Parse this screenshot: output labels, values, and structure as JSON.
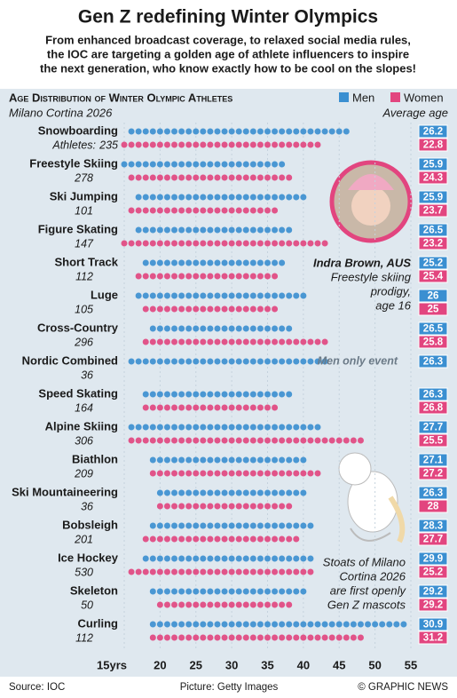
{
  "chart_data": {
    "type": "dot-range",
    "title": "Gen Z redefining Winter Olympics",
    "subtitle": [
      "From enhanced broadcast coverage, to relaxed social media rules,",
      "the IOC are targeting a golden age of athlete influencers to inspire",
      "the next generation, who know exactly how to be cool on the slopes!"
    ],
    "chart_title": "Age Distribution of Winter Olympic Athletes",
    "chart_subtitle": "Milano Cortina 2026",
    "average_label": "Average age",
    "athletes_label": "Athletes:",
    "categories": [
      "Snowboarding",
      "Freestyle Skiing",
      "Ski Jumping",
      "Figure Skating",
      "Short Track",
      "Luge",
      "Cross-Country",
      "Nordic Combined",
      "Speed Skating",
      "Alpine Skiing",
      "Biathlon",
      "Ski Mountaineering",
      "Bobsleigh",
      "Ice Hockey",
      "Skeleton",
      "Curling"
    ],
    "athletes": [
      235,
      278,
      101,
      147,
      112,
      105,
      296,
      36,
      164,
      306,
      209,
      36,
      201,
      530,
      50,
      112
    ],
    "series": [
      {
        "name": "Men",
        "color": "#3a8fd1",
        "min": [
          16,
          15,
          17,
          17,
          18,
          17,
          19,
          16,
          18,
          16,
          19,
          20,
          19,
          18,
          19,
          19
        ],
        "max": [
          47,
          37,
          40,
          38,
          38,
          40,
          38,
          43,
          39,
          42,
          40,
          40,
          41,
          41,
          40,
          55
        ],
        "average": [
          26.2,
          25.9,
          25.9,
          26.5,
          25.2,
          26.0,
          26.5,
          26.3,
          26.3,
          27.7,
          27.1,
          26.3,
          28.3,
          29.9,
          29.2,
          30.9
        ]
      },
      {
        "name": "Women",
        "color": "#e2457f",
        "min": [
          15,
          16,
          16,
          15,
          17,
          18,
          18,
          null,
          18,
          16,
          19,
          20,
          18,
          16,
          20,
          19
        ],
        "max": [
          42,
          38,
          36,
          43,
          36,
          36,
          44,
          null,
          37,
          48,
          42,
          38,
          40,
          41,
          38,
          48
        ],
        "average": [
          22.8,
          24.3,
          23.7,
          23.2,
          25.4,
          25.0,
          25.8,
          null,
          26.8,
          25.5,
          27.2,
          28.0,
          27.7,
          25.2,
          29.2,
          31.2
        ]
      }
    ],
    "xlim": [
      15,
      55
    ],
    "xticks": [
      {
        "value": 15,
        "label": "15yrs"
      },
      20,
      25,
      30,
      35,
      40,
      45,
      50,
      55
    ],
    "grid": true,
    "annotations": {
      "photo_name": "Indra Brown, AUS",
      "photo_caption": [
        "Freestyle skiing",
        "prodigy,",
        "age 16"
      ],
      "men_only": "Men only event",
      "mascot": [
        "Stoats of Milano",
        "Cortina 2026",
        "are first openly",
        "Gen Z mascots"
      ]
    },
    "source": "Source: IOC",
    "picture_credit": "Picture: Getty Images",
    "copyright": "© GRAPHIC NEWS"
  }
}
